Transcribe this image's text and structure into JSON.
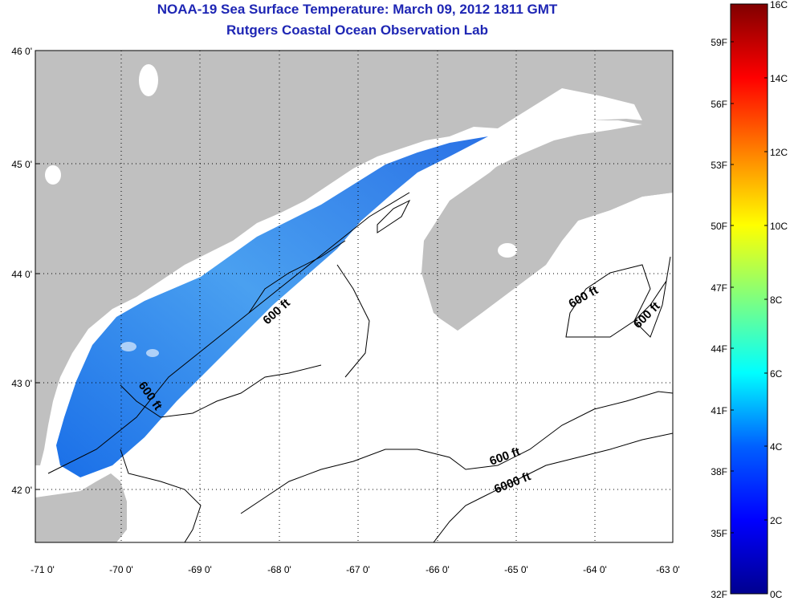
{
  "title_line1": "NOAA-19 Sea Surface Temperature:  March 09, 2012 1811 GMT",
  "title_line2": "Rutgers Coastal Ocean Observation Lab",
  "map": {
    "lon_range": [
      -71,
      -63
    ],
    "lat_range": [
      41.5,
      46
    ],
    "lon_ticks": [
      "-71 0'",
      "-70 0'",
      "-69 0'",
      "-68 0'",
      "-67 0'",
      "-66 0'",
      "-65 0'",
      "-64 0'",
      "-63 0'"
    ],
    "lat_ticks": [
      "46 0'",
      "45 0'",
      "44 0'",
      "43 0'",
      "42 0'"
    ],
    "grid": "dotted",
    "land_color": "#c0c0c0",
    "no_data_color": "#ffffff",
    "contour_labels": [
      "600 ft",
      "600 ft",
      "600 ft",
      "600 ft",
      "600 ft",
      "6000 ft"
    ]
  },
  "colorbar": {
    "celsius_labels": [
      "16C",
      "14C",
      "12C",
      "10C",
      "8C",
      "6C",
      "4C",
      "2C",
      "0C"
    ],
    "fahrenheit_labels": [
      "59F",
      "56F",
      "53F",
      "50F",
      "47F",
      "44F",
      "41F",
      "38F",
      "35F",
      "32F"
    ],
    "range_c": [
      0,
      16
    ]
  }
}
